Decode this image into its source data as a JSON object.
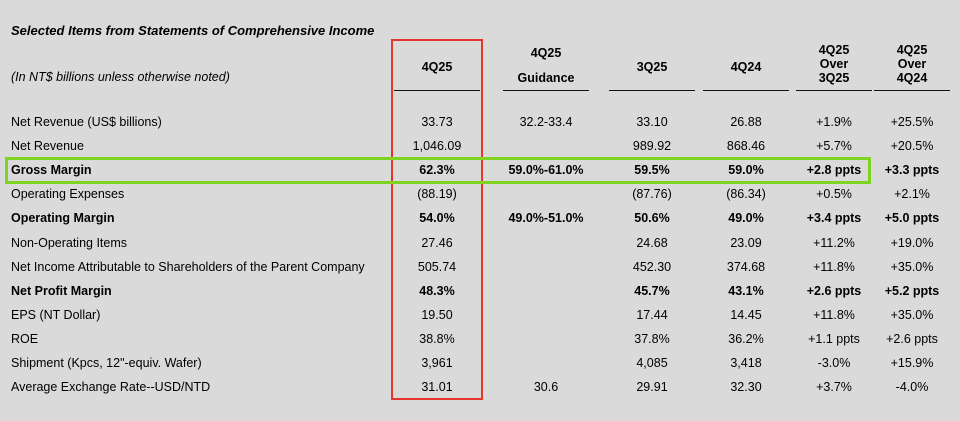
{
  "title": "Selected Items from Statements of Comprehensive Income",
  "subtitle": "(In NT$ billions unless otherwise noted)",
  "columns": [
    {
      "lines": [
        "4Q25"
      ]
    },
    {
      "lines": [
        "4Q25",
        "Guidance"
      ]
    },
    {
      "lines": [
        "3Q25"
      ]
    },
    {
      "lines": [
        "4Q24"
      ]
    },
    {
      "lines": [
        "4Q25",
        "Over",
        "3Q25"
      ]
    },
    {
      "lines": [
        "4Q25",
        "Over",
        "4Q24"
      ]
    }
  ],
  "rows": [
    {
      "label": "Net Revenue (US$ billions)",
      "bold": false,
      "values": [
        "33.73",
        "32.2-33.4",
        "33.10",
        "26.88",
        "+1.9%",
        "+25.5%"
      ]
    },
    {
      "label": "Net Revenue",
      "bold": false,
      "values": [
        "1,046.09",
        "",
        "989.92",
        "868.46",
        "+5.7%",
        "+20.5%"
      ]
    },
    {
      "label": "Gross Margin",
      "bold": true,
      "values": [
        "62.3%",
        "59.0%-61.0%",
        "59.5%",
        "59.0%",
        "+2.8 ppts",
        "+3.3 ppts"
      ]
    },
    {
      "label": "Operating Expenses",
      "bold": false,
      "values": [
        "(88.19)",
        "",
        "(87.76)",
        "(86.34)",
        "+0.5%",
        "+2.1%"
      ]
    },
    {
      "label": "Operating Margin",
      "bold": true,
      "values": [
        "54.0%",
        "49.0%-51.0%",
        "50.6%",
        "49.0%",
        "+3.4 ppts",
        "+5.0 ppts"
      ]
    },
    {
      "label": "Non-Operating Items",
      "bold": false,
      "values": [
        "27.46",
        "",
        "24.68",
        "23.09",
        "+11.2%",
        "+19.0%"
      ]
    },
    {
      "label": "Net Income Attributable to Shareholders of the Parent Company",
      "bold": false,
      "values": [
        "505.74",
        "",
        "452.30",
        "374.68",
        "+11.8%",
        "+35.0%"
      ]
    },
    {
      "label": "Net Profit Margin",
      "bold": true,
      "values": [
        "48.3%",
        "",
        "45.7%",
        "43.1%",
        "+2.6 ppts",
        "+5.2 ppts"
      ]
    },
    {
      "label": "EPS (NT Dollar)",
      "bold": false,
      "values": [
        "19.50",
        "",
        "17.44",
        "14.45",
        "+11.8%",
        "+35.0%"
      ]
    },
    {
      "label": "ROE",
      "bold": false,
      "values": [
        "38.8%",
        "",
        "37.8%",
        "36.2%",
        "+1.1 ppts",
        "+2.6 ppts"
      ]
    },
    {
      "label": "Shipment (Kpcs, 12\"-equiv. Wafer)",
      "bold": false,
      "values": [
        "3,961",
        "",
        "4,085",
        "3,418",
        "-3.0%",
        "+15.9%"
      ]
    },
    {
      "label": "Average Exchange Rate--USD/NTD",
      "bold": false,
      "values": [
        "31.01",
        "30.6",
        "29.91",
        "32.30",
        "+3.7%",
        "-4.0%"
      ]
    }
  ],
  "highlight": {
    "column_color": "#e8352b",
    "row_color": "#7fd321"
  }
}
